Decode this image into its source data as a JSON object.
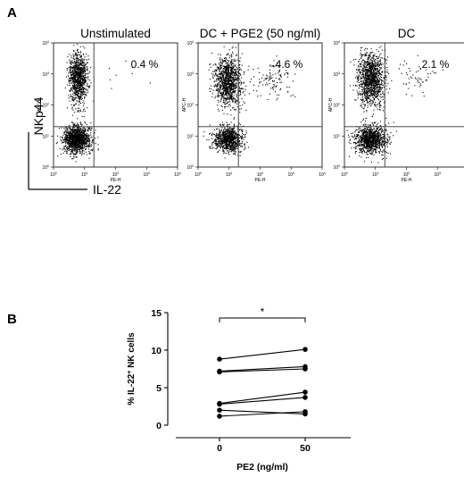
{
  "figure": {
    "panel_a_letter": "A",
    "panel_b_letter": "B"
  },
  "panel_a": {
    "y_marker": "NKp44",
    "x_marker": "IL-22",
    "plot_y_axis_label": "APC-H",
    "plot_x_axis_label": "PE-H",
    "tick_base": "10",
    "tick_exponents": [
      "0",
      "1",
      "2",
      "3",
      "4"
    ]
  },
  "chart_data": [
    {
      "type": "scatter",
      "title": "Unstimulated",
      "xlabel": "PE-H",
      "ylabel": "APC-H",
      "scale": "log",
      "xlim": [
        1,
        10000
      ],
      "ylim": [
        1,
        10000
      ],
      "quadrant_annotation": "0.4 %",
      "populations": [
        {
          "center": [
            5.5,
            8.0
          ],
          "spread_decades": [
            0.22,
            0.22
          ],
          "n": 1300
        },
        {
          "center": [
            6.0,
            800.0
          ],
          "spread_decades": [
            0.15,
            0.4
          ],
          "n": 1000
        },
        {
          "center": [
            200.0,
            1000.0
          ],
          "spread_decades": [
            0.4,
            0.3
          ],
          "n": 8
        }
      ]
    },
    {
      "type": "scatter",
      "title": "DC + PGE2 (50 ng/ml)",
      "xlabel": "PE-H",
      "ylabel": "APC-H",
      "scale": "log",
      "xlim": [
        1,
        10000
      ],
      "ylim": [
        1,
        10000
      ],
      "quadrant_annotation": "4.6 %",
      "populations": [
        {
          "center": [
            9.0,
            8.0
          ],
          "spread_decades": [
            0.23,
            0.2
          ],
          "n": 900
        },
        {
          "center": [
            9.0,
            600.0
          ],
          "spread_decades": [
            0.22,
            0.4
          ],
          "n": 1100
        },
        {
          "center": [
            260.0,
            700.0
          ],
          "spread_decades": [
            0.35,
            0.25
          ],
          "n": 110
        }
      ]
    },
    {
      "type": "scatter",
      "title": "DC",
      "xlabel": "PE-H",
      "ylabel": "APC-H",
      "scale": "log",
      "xlim": [
        1,
        10000
      ],
      "ylim": [
        1,
        10000
      ],
      "quadrant_annotation": "2.1 %",
      "populations": [
        {
          "center": [
            7.0,
            8.0
          ],
          "spread_decades": [
            0.25,
            0.22
          ],
          "n": 1100
        },
        {
          "center": [
            7.0,
            700.0
          ],
          "spread_decades": [
            0.22,
            0.42
          ],
          "n": 1200
        },
        {
          "center": [
            200.0,
            800.0
          ],
          "spread_decades": [
            0.35,
            0.25
          ],
          "n": 55
        }
      ]
    },
    {
      "type": "line",
      "xlabel": "PE2 (ng/ml)",
      "ylabel": "% IL-22",
      "ylabel_superscript": "+",
      "ylabel_suffix": " NK cells",
      "categories": [
        "0",
        "50"
      ],
      "ylim": [
        0,
        15
      ],
      "yticks": [
        "0",
        "5",
        "10",
        "15"
      ],
      "series": [
        {
          "values": [
            8.8,
            10.1
          ]
        },
        {
          "values": [
            7.2,
            7.8
          ]
        },
        {
          "values": [
            7.1,
            7.5
          ]
        },
        {
          "values": [
            2.9,
            4.4
          ]
        },
        {
          "values": [
            2.8,
            3.7
          ]
        },
        {
          "values": [
            2.0,
            1.5
          ]
        },
        {
          "values": [
            1.2,
            1.8
          ]
        }
      ],
      "significance": "*"
    }
  ]
}
